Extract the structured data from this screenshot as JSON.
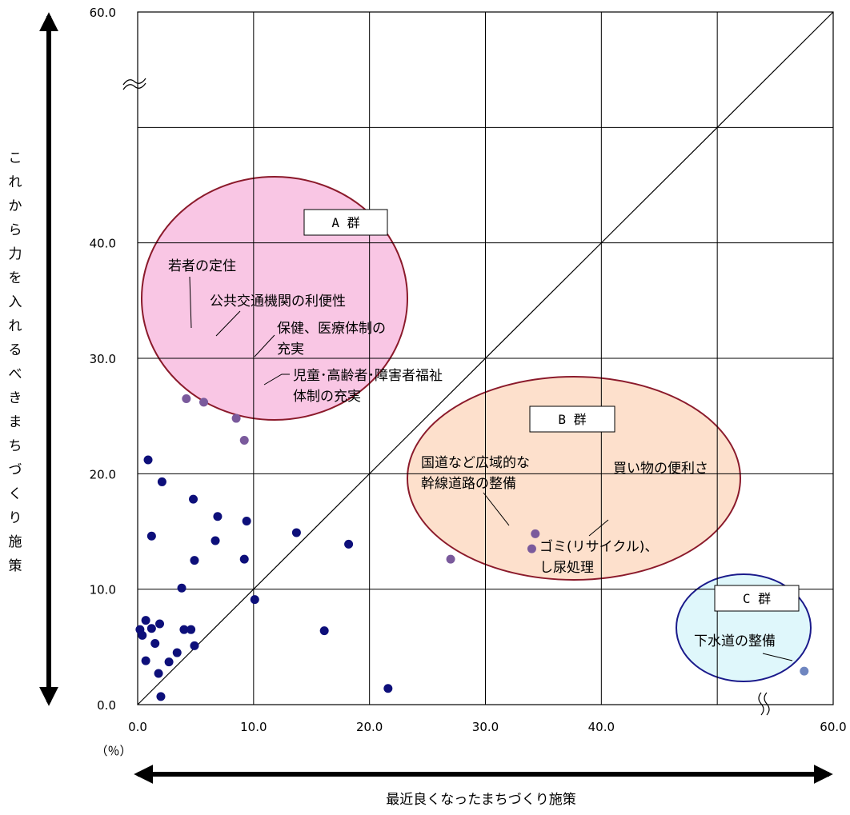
{
  "chart_data": {
    "type": "scatter",
    "xlabel": "最近良くなったまちづくり施策",
    "ylabel": "これから力を入れるべきまちづくり施策",
    "unit_label": "（％）",
    "xlim": [
      0,
      60
    ],
    "ylim": [
      0,
      60
    ],
    "x_ticks": [
      "0.0",
      "10.0",
      "20.0",
      "30.0",
      "40.0",
      "60.0"
    ],
    "y_ticks": [
      "0.0",
      "10.0",
      "20.0",
      "30.0",
      "40.0",
      "60.0"
    ],
    "grid": true,
    "diagonal_reference_line": true,
    "axis_break": true,
    "groups": [
      {
        "label": "A 群",
        "color": "#f9c6e4",
        "stroke": "#8b1a2b"
      },
      {
        "label": "B 群",
        "color": "#fde0cc",
        "stroke": "#8b1a2b"
      },
      {
        "label": "C 群",
        "color": "#dff7fb",
        "stroke": "#1a1a8b"
      }
    ],
    "labeled_points": [
      {
        "label": "若者の定住",
        "x": 4.2,
        "y": 26.5,
        "group": "A 群"
      },
      {
        "label": "公共交通機関の利便性",
        "x": 5.7,
        "y": 26.2,
        "group": "A 群"
      },
      {
        "label": "保健、医療体制の充実",
        "x": 8.5,
        "y": 24.8,
        "group": "A 群"
      },
      {
        "label": "児童･高齢者･障害者福祉体制の充実",
        "x": 9.2,
        "y": 22.9,
        "group": "A 群"
      },
      {
        "label": "国道など広域的な幹線道路の整備",
        "x": 27.0,
        "y": 12.6,
        "group": "B 群"
      },
      {
        "label": "買い物の便利さ",
        "x": 34.3,
        "y": 14.8,
        "group": "B 群"
      },
      {
        "label": "ゴミ(リサイクル)、し尿処理",
        "x": 34.0,
        "y": 13.5,
        "group": "B 群"
      },
      {
        "label": "下水道の整備",
        "x": 57.5,
        "y": 2.9,
        "group": "C 群"
      }
    ],
    "other_points": [
      {
        "x": 0.9,
        "y": 21.2
      },
      {
        "x": 2.1,
        "y": 19.3
      },
      {
        "x": 4.8,
        "y": 17.8
      },
      {
        "x": 6.9,
        "y": 16.3
      },
      {
        "x": 9.4,
        "y": 15.9
      },
      {
        "x": 1.2,
        "y": 14.6
      },
      {
        "x": 13.7,
        "y": 14.9
      },
      {
        "x": 6.7,
        "y": 14.2
      },
      {
        "x": 18.2,
        "y": 13.9
      },
      {
        "x": 4.9,
        "y": 12.5
      },
      {
        "x": 9.2,
        "y": 12.6
      },
      {
        "x": 3.8,
        "y": 10.1
      },
      {
        "x": 10.1,
        "y": 9.1
      },
      {
        "x": 0.7,
        "y": 7.3
      },
      {
        "x": 1.9,
        "y": 7.0
      },
      {
        "x": 1.2,
        "y": 6.6
      },
      {
        "x": 0.2,
        "y": 6.5
      },
      {
        "x": 4.0,
        "y": 6.5
      },
      {
        "x": 4.6,
        "y": 6.5
      },
      {
        "x": 16.1,
        "y": 6.4
      },
      {
        "x": 0.4,
        "y": 6.0
      },
      {
        "x": 1.5,
        "y": 5.3
      },
      {
        "x": 4.9,
        "y": 5.1
      },
      {
        "x": 3.4,
        "y": 4.5
      },
      {
        "x": 0.7,
        "y": 3.8
      },
      {
        "x": 2.7,
        "y": 3.7
      },
      {
        "x": 1.8,
        "y": 2.7
      },
      {
        "x": 2.0,
        "y": 0.7
      },
      {
        "x": 21.6,
        "y": 1.4
      }
    ],
    "colors": {
      "point": "#0d0f7a",
      "labeled_point": "#7a5a9c",
      "labeled_point_c": "#6f86c0",
      "grid": "#000000"
    }
  }
}
